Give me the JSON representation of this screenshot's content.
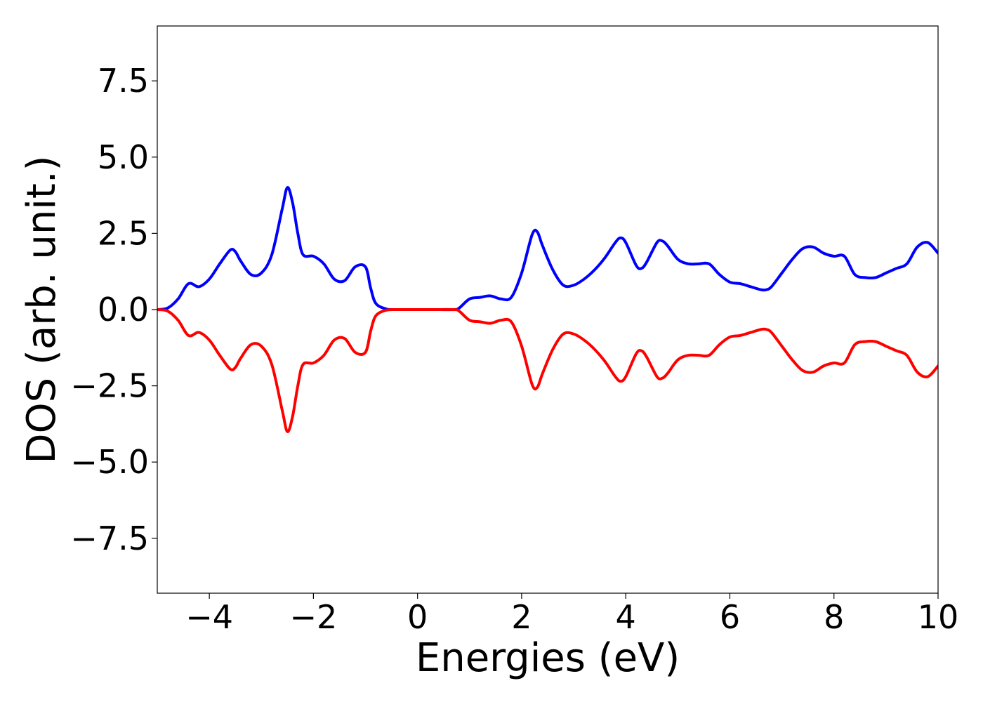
{
  "chart_data": {
    "type": "line",
    "title": "",
    "xlabel": "Energies (eV)",
    "ylabel": "DOS (arb. unit.)",
    "xlim": [
      -5,
      10
    ],
    "ylim": [
      -9.3,
      9.3
    ],
    "x_ticks": [
      -4,
      -2,
      0,
      2,
      4,
      6,
      8,
      10
    ],
    "x_tick_labels": [
      "−4",
      "−2",
      "0",
      "2",
      "4",
      "6",
      "8",
      "10"
    ],
    "y_ticks": [
      7.5,
      5.0,
      2.5,
      0.0,
      -2.5,
      -5.0,
      -7.5
    ],
    "y_tick_labels": [
      "7.5",
      "5.0",
      "2.5",
      "0.0",
      "−2.5",
      "−5.0",
      "−7.5"
    ],
    "grid": false,
    "legend": "none",
    "series": [
      {
        "color": "#0000ff",
        "x": [
          -5.0,
          -4.8,
          -4.6,
          -4.4,
          -4.2,
          -4.0,
          -3.8,
          -3.6,
          -3.5,
          -3.4,
          -3.2,
          -3.0,
          -2.8,
          -2.6,
          -2.5,
          -2.4,
          -2.3,
          -2.2,
          -2.0,
          -1.8,
          -1.6,
          -1.4,
          -1.2,
          -1.0,
          -0.9,
          -0.8,
          -0.6,
          -0.4,
          0.0,
          0.4,
          0.7,
          0.8,
          1.0,
          1.2,
          1.4,
          1.6,
          1.8,
          2.0,
          2.2,
          2.3,
          2.4,
          2.6,
          2.8,
          3.0,
          3.2,
          3.4,
          3.6,
          3.8,
          3.9,
          4.0,
          4.2,
          4.3,
          4.4,
          4.6,
          4.7,
          4.8,
          5.0,
          5.2,
          5.4,
          5.6,
          5.8,
          6.0,
          6.2,
          6.4,
          6.6,
          6.7,
          6.8,
          7.0,
          7.2,
          7.4,
          7.6,
          7.8,
          8.0,
          8.2,
          8.4,
          8.6,
          8.8,
          9.0,
          9.2,
          9.4,
          9.6,
          9.8,
          10.0
        ],
        "values": [
          0.0,
          0.05,
          0.35,
          0.85,
          0.75,
          1.0,
          1.5,
          1.95,
          1.9,
          1.6,
          1.15,
          1.2,
          1.8,
          3.3,
          4.0,
          3.5,
          2.5,
          1.8,
          1.75,
          1.5,
          1.0,
          0.95,
          1.4,
          1.4,
          0.7,
          0.2,
          0.02,
          0.0,
          0.0,
          0.0,
          0.0,
          0.05,
          0.35,
          0.4,
          0.45,
          0.35,
          0.4,
          1.2,
          2.45,
          2.55,
          2.1,
          1.3,
          0.8,
          0.8,
          1.0,
          1.3,
          1.7,
          2.2,
          2.35,
          2.2,
          1.45,
          1.35,
          1.55,
          2.2,
          2.25,
          2.1,
          1.65,
          1.5,
          1.5,
          1.5,
          1.15,
          0.9,
          0.85,
          0.75,
          0.65,
          0.65,
          0.75,
          1.2,
          1.65,
          2.0,
          2.05,
          1.85,
          1.75,
          1.75,
          1.15,
          1.05,
          1.05,
          1.2,
          1.35,
          1.5,
          2.05,
          2.2,
          1.85
        ]
      },
      {
        "color": "#ff0000",
        "x": [
          -5.0,
          -4.8,
          -4.6,
          -4.4,
          -4.2,
          -4.0,
          -3.8,
          -3.6,
          -3.5,
          -3.4,
          -3.2,
          -3.0,
          -2.8,
          -2.6,
          -2.5,
          -2.4,
          -2.3,
          -2.2,
          -2.0,
          -1.8,
          -1.6,
          -1.4,
          -1.2,
          -1.0,
          -0.9,
          -0.8,
          -0.6,
          -0.4,
          0.0,
          0.4,
          0.7,
          0.8,
          1.0,
          1.2,
          1.4,
          1.6,
          1.8,
          2.0,
          2.2,
          2.3,
          2.4,
          2.6,
          2.8,
          3.0,
          3.2,
          3.4,
          3.6,
          3.8,
          3.9,
          4.0,
          4.2,
          4.3,
          4.4,
          4.6,
          4.7,
          4.8,
          5.0,
          5.2,
          5.4,
          5.6,
          5.8,
          6.0,
          6.2,
          6.4,
          6.6,
          6.7,
          6.8,
          7.0,
          7.2,
          7.4,
          7.6,
          7.8,
          8.0,
          8.2,
          8.4,
          8.6,
          8.8,
          9.0,
          9.2,
          9.4,
          9.6,
          9.8,
          10.0
        ],
        "values": [
          0.0,
          -0.05,
          -0.35,
          -0.85,
          -0.75,
          -1.0,
          -1.5,
          -1.95,
          -1.9,
          -1.6,
          -1.15,
          -1.2,
          -1.8,
          -3.3,
          -4.0,
          -3.5,
          -2.5,
          -1.8,
          -1.75,
          -1.5,
          -1.0,
          -0.95,
          -1.4,
          -1.4,
          -0.7,
          -0.2,
          -0.02,
          0.0,
          0.0,
          0.0,
          0.0,
          -0.05,
          -0.35,
          -0.4,
          -0.45,
          -0.35,
          -0.4,
          -1.2,
          -2.45,
          -2.55,
          -2.1,
          -1.3,
          -0.8,
          -0.8,
          -1.0,
          -1.3,
          -1.7,
          -2.2,
          -2.35,
          -2.2,
          -1.45,
          -1.35,
          -1.55,
          -2.2,
          -2.25,
          -2.1,
          -1.65,
          -1.5,
          -1.5,
          -1.5,
          -1.15,
          -0.9,
          -0.85,
          -0.75,
          -0.65,
          -0.65,
          -0.75,
          -1.2,
          -1.65,
          -2.0,
          -2.05,
          -1.85,
          -1.75,
          -1.75,
          -1.15,
          -1.05,
          -1.05,
          -1.2,
          -1.35,
          -1.5,
          -2.05,
          -2.2,
          -1.85
        ]
      }
    ]
  }
}
